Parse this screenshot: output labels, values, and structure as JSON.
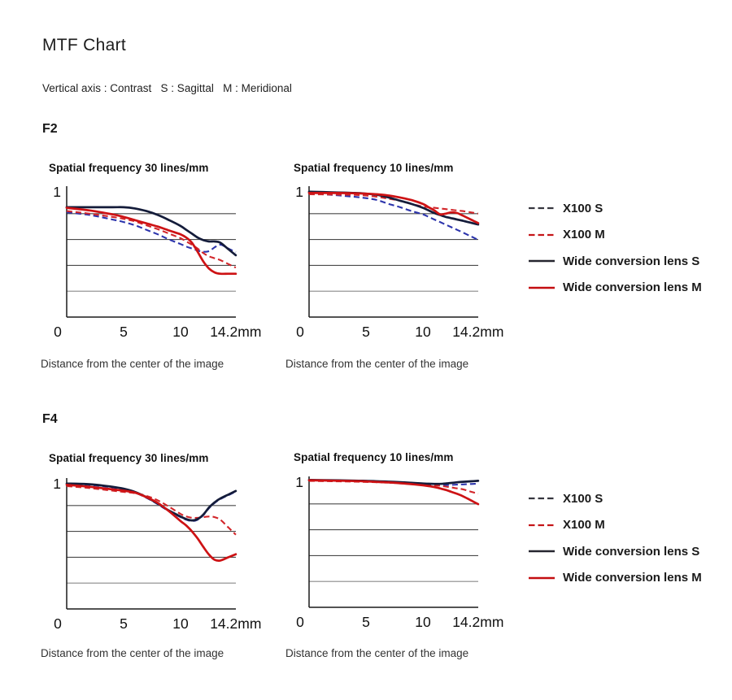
{
  "page": {
    "title": "MTF Chart",
    "subtitle": "Vertical axis : Contrast   S : Sagittal   M : Meridional"
  },
  "sections": [
    {
      "label": "F2"
    },
    {
      "label": "F4"
    }
  ],
  "legend": {
    "items": [
      {
        "id": "x100_s",
        "label": "X100 S",
        "style": "dashed",
        "color": "#2c34ac",
        "legend_color": "#36363f"
      },
      {
        "id": "x100_m",
        "label": "X100 M",
        "style": "dashed",
        "color": "#d2262a",
        "legend_color": "#c51518"
      },
      {
        "id": "wide_s",
        "label": "Wide conversion lens S",
        "style": "solid",
        "color": "#141c3a",
        "legend_color": "#25252f"
      },
      {
        "id": "wide_m",
        "label": "Wide conversion lens M",
        "style": "solid",
        "color": "#cd1214",
        "legend_color": "#c30d10"
      }
    ]
  },
  "axis": {
    "y_top_label": "1",
    "x_ticks": [
      "0",
      "5",
      "10",
      "14.2mm"
    ],
    "x_tick_values": [
      0,
      5,
      10,
      14.2
    ],
    "y_gridlines": [
      0.2,
      0.4,
      0.6,
      0.8
    ],
    "ylim": [
      0,
      1
    ],
    "x_caption": "Distance from the center of the image",
    "gridline_color_dark": "#4a4a4a",
    "gridline_color_light": "#8a8a8a",
    "axis_color": "#1a1a1a"
  },
  "chart_data": [
    {
      "type": "line",
      "section": "F2",
      "title": "Spatial frequency 30 lines/mm",
      "xlabel": "Distance from the center of the image",
      "ylabel": "Contrast",
      "ylim": [
        0,
        1
      ],
      "xlim_mm": [
        0,
        14.2
      ],
      "x": [
        0,
        2,
        4,
        5,
        6,
        7,
        8,
        9,
        10,
        10.5,
        11,
        11.5,
        12,
        12.5,
        13,
        13.5,
        14.2
      ],
      "series": [
        {
          "id": "x100_s",
          "name": "X100 S",
          "values": [
            0.81,
            0.79,
            0.755,
            0.735,
            0.71,
            0.675,
            0.64,
            0.6,
            0.565,
            0.545,
            0.53,
            0.515,
            0.505,
            0.51,
            0.54,
            0.56,
            0.53
          ]
        },
        {
          "id": "x100_m",
          "name": "X100 M",
          "values": [
            0.82,
            0.8,
            0.775,
            0.76,
            0.74,
            0.71,
            0.68,
            0.645,
            0.61,
            0.585,
            0.56,
            0.53,
            0.495,
            0.47,
            0.455,
            0.44,
            0.41
          ]
        },
        {
          "id": "wide_s",
          "name": "Wide conversion lens S",
          "values": [
            0.85,
            0.85,
            0.85,
            0.85,
            0.84,
            0.82,
            0.79,
            0.75,
            0.705,
            0.675,
            0.645,
            0.615,
            0.595,
            0.585,
            0.585,
            0.575,
            0.525
          ]
        },
        {
          "id": "wide_m",
          "name": "Wide conversion lens M",
          "values": [
            0.845,
            0.825,
            0.795,
            0.775,
            0.75,
            0.725,
            0.7,
            0.67,
            0.64,
            0.615,
            0.575,
            0.505,
            0.43,
            0.375,
            0.345,
            0.335,
            0.335
          ]
        }
      ]
    },
    {
      "type": "line",
      "section": "F2",
      "title": "Spatial frequency 10 lines/mm",
      "xlabel": "Distance from the center of the image",
      "ylabel": "Contrast",
      "ylim": [
        0,
        1
      ],
      "xlim_mm": [
        0,
        14.2
      ],
      "x": [
        0,
        2,
        4,
        5,
        6,
        7,
        8,
        9,
        10,
        10.5,
        11,
        11.5,
        12,
        12.5,
        13,
        13.5,
        14.2
      ],
      "series": [
        {
          "id": "x100_s",
          "name": "X100 S",
          "values": [
            0.955,
            0.945,
            0.93,
            0.92,
            0.905,
            0.875,
            0.85,
            0.82,
            0.795,
            0.775,
            0.755,
            0.735,
            0.715,
            0.695,
            0.675,
            0.655,
            0.625
          ]
        },
        {
          "id": "x100_m",
          "name": "X100 M",
          "values": [
            0.95,
            0.948,
            0.945,
            0.94,
            0.93,
            0.915,
            0.9,
            0.875,
            0.855,
            0.85,
            0.845,
            0.84,
            0.835,
            0.83,
            0.825,
            0.82,
            0.81
          ]
        },
        {
          "id": "wide_s",
          "name": "Wide conversion lens S",
          "values": [
            0.97,
            0.965,
            0.96,
            0.955,
            0.945,
            0.925,
            0.9,
            0.875,
            0.845,
            0.825,
            0.805,
            0.79,
            0.775,
            0.765,
            0.755,
            0.745,
            0.73
          ]
        },
        {
          "id": "wide_m",
          "name": "Wide conversion lens M",
          "values": [
            0.96,
            0.96,
            0.958,
            0.955,
            0.95,
            0.94,
            0.925,
            0.905,
            0.875,
            0.85,
            0.825,
            0.795,
            0.8,
            0.81,
            0.805,
            0.785,
            0.755
          ]
        }
      ]
    },
    {
      "type": "line",
      "section": "F4",
      "title": "Spatial frequency 30 lines/mm",
      "xlabel": "Distance from the center of the image",
      "ylabel": "Contrast",
      "ylim": [
        0,
        1
      ],
      "xlim_mm": [
        0,
        14.2
      ],
      "x": [
        0,
        2,
        4,
        5,
        6,
        7,
        8,
        9,
        10,
        10.5,
        11,
        11.5,
        12,
        12.5,
        13,
        13.5,
        14.2
      ],
      "series": [
        {
          "id": "x100_s",
          "name": "X100 S",
          "values": [
            0.965,
            0.96,
            0.94,
            0.925,
            0.9,
            0.86,
            0.81,
            0.755,
            0.71,
            0.69,
            0.68,
            0.69,
            0.725,
            0.78,
            0.82,
            0.85,
            0.88
          ]
        },
        {
          "id": "x100_m",
          "name": "X100 M",
          "values": [
            0.95,
            0.935,
            0.915,
            0.905,
            0.895,
            0.875,
            0.84,
            0.79,
            0.735,
            0.715,
            0.705,
            0.705,
            0.71,
            0.715,
            0.71,
            0.69,
            0.63
          ]
        },
        {
          "id": "wide_s",
          "name": "Wide conversion lens S",
          "values": [
            0.97,
            0.965,
            0.945,
            0.93,
            0.905,
            0.865,
            0.815,
            0.76,
            0.715,
            0.695,
            0.685,
            0.695,
            0.73,
            0.785,
            0.825,
            0.855,
            0.885
          ]
        },
        {
          "id": "wide_m",
          "name": "Wide conversion lens M",
          "values": [
            0.96,
            0.945,
            0.925,
            0.915,
            0.9,
            0.865,
            0.82,
            0.755,
            0.68,
            0.645,
            0.6,
            0.545,
            0.48,
            0.42,
            0.38,
            0.375,
            0.4
          ]
        }
      ]
    },
    {
      "type": "line",
      "section": "F4",
      "title": "Spatial frequency 10 lines/mm",
      "xlabel": "Distance from the center of the image",
      "ylabel": "Contrast",
      "ylim": [
        0,
        1
      ],
      "xlim_mm": [
        0,
        14.2
      ],
      "x": [
        0,
        2,
        4,
        5,
        6,
        7,
        8,
        9,
        10,
        10.5,
        11,
        11.5,
        12,
        12.5,
        13,
        13.5,
        14.2
      ],
      "series": [
        {
          "id": "x100_s",
          "name": "X100 S",
          "values": [
            0.98,
            0.978,
            0.975,
            0.972,
            0.968,
            0.965,
            0.96,
            0.955,
            0.95,
            0.948,
            0.946,
            0.945,
            0.945,
            0.947,
            0.949,
            0.951,
            0.954
          ]
        },
        {
          "id": "x100_m",
          "name": "X100 M",
          "values": [
            0.978,
            0.975,
            0.972,
            0.97,
            0.967,
            0.964,
            0.96,
            0.956,
            0.951,
            0.948,
            0.944,
            0.94,
            0.934,
            0.927,
            0.92,
            0.913,
            0.895
          ]
        },
        {
          "id": "wide_s",
          "name": "Wide conversion lens S",
          "values": [
            0.985,
            0.983,
            0.98,
            0.978,
            0.975,
            0.972,
            0.968,
            0.963,
            0.958,
            0.956,
            0.955,
            0.955,
            0.958,
            0.962,
            0.967,
            0.971,
            0.975
          ]
        },
        {
          "id": "wide_m",
          "name": "Wide conversion lens M",
          "values": [
            0.983,
            0.98,
            0.977,
            0.974,
            0.97,
            0.966,
            0.96,
            0.953,
            0.944,
            0.938,
            0.93,
            0.92,
            0.908,
            0.893,
            0.878,
            0.86,
            0.828
          ]
        }
      ]
    }
  ]
}
